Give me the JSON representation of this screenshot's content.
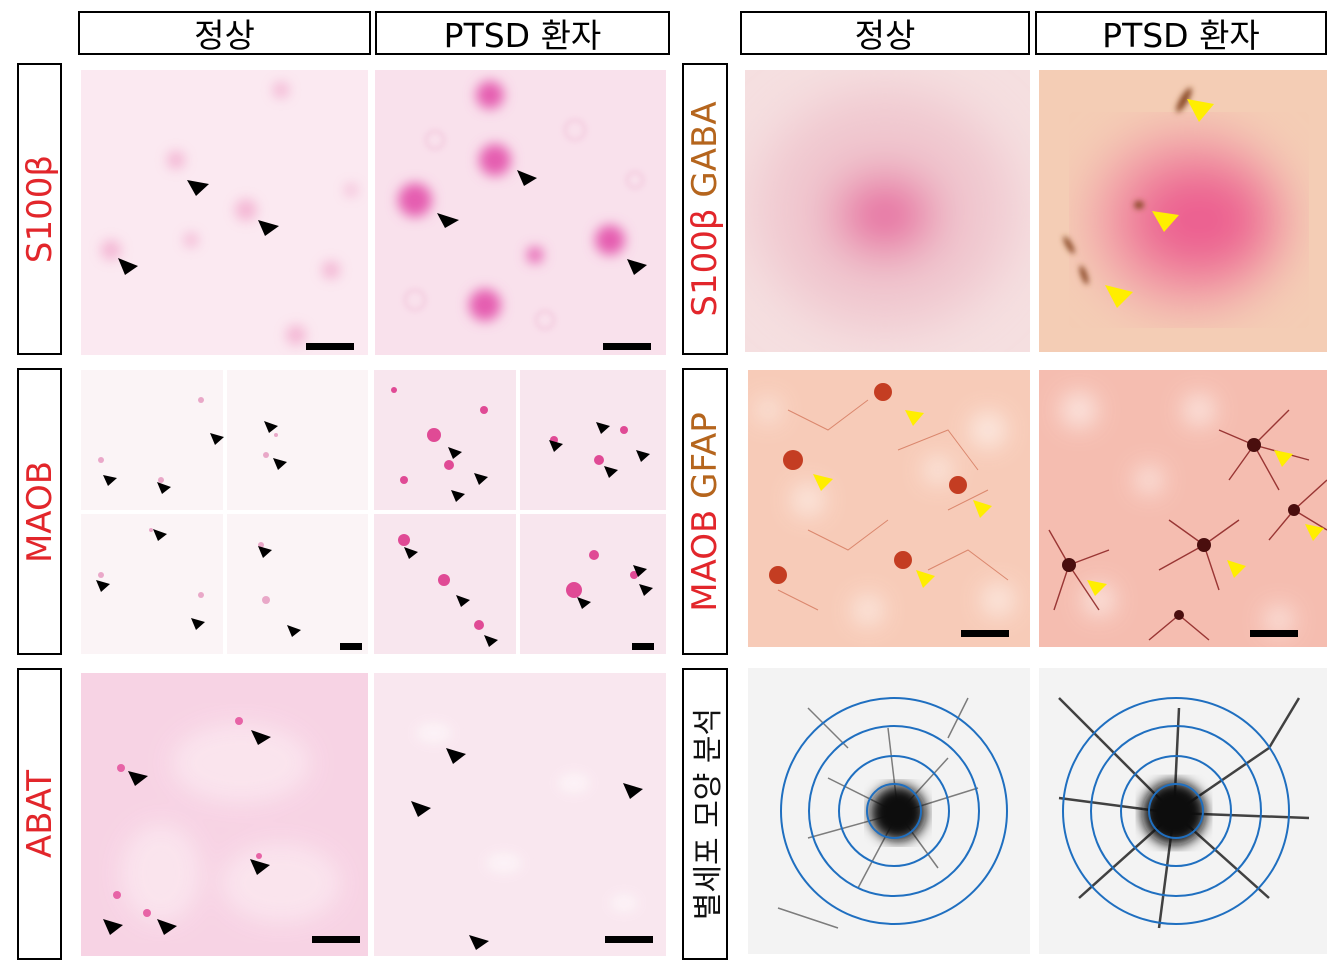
{
  "column_headers": {
    "left_normal": "정상",
    "left_ptsd": "PTSD 환자",
    "right_normal": "정상",
    "right_ptsd": "PTSD 환자"
  },
  "row_labels": {
    "s100b": "S100β",
    "maob": "MAOB",
    "abat": "ABAT",
    "s100b_part": "S100β",
    "gaba_part": "GABA",
    "maob_part": "MAOB",
    "gfap_part": "GFAP",
    "morphology": "별세포 모양 분석"
  },
  "colors": {
    "red_label": "#e2262b",
    "brown_label": "#b5651d",
    "arrow_black": "#000000",
    "arrow_yellow": "#ffee00",
    "sholl_ring": "#1f6fc0"
  }
}
